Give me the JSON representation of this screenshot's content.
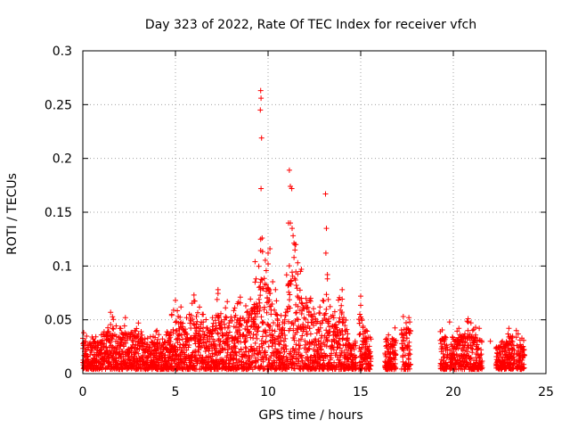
{
  "chart_data": {
    "type": "scatter",
    "title": "Day 323 of 2022, Rate Of TEC Index for receiver vfch",
    "xlabel": "GPS time / hours",
    "ylabel": "ROTI / TECUs",
    "xlim": [
      0,
      25
    ],
    "ylim": [
      0,
      0.3
    ],
    "x_ticks": [
      "0",
      "5",
      "10",
      "15",
      "20",
      "25"
    ],
    "y_ticks": [
      "0",
      "0.05",
      "0.1",
      "0.15",
      "0.2",
      "0.25",
      "0.3"
    ],
    "grid": true,
    "marker": "+",
    "series": [
      {
        "name": "ROTI",
        "color": "#ff0000",
        "envelope": [
          [
            0.05,
            0.038
          ],
          [
            0.5,
            0.034
          ],
          [
            1.0,
            0.036
          ],
          [
            1.5,
            0.057
          ],
          [
            2.0,
            0.042
          ],
          [
            2.3,
            0.052
          ],
          [
            2.8,
            0.04
          ],
          [
            3.0,
            0.047
          ],
          [
            3.5,
            0.033
          ],
          [
            4.0,
            0.04
          ],
          [
            4.5,
            0.036
          ],
          [
            4.8,
            0.055
          ],
          [
            5.0,
            0.068
          ],
          [
            5.3,
            0.062
          ],
          [
            5.6,
            0.052
          ],
          [
            6.0,
            0.073
          ],
          [
            6.5,
            0.055
          ],
          [
            7.0,
            0.052
          ],
          [
            7.3,
            0.078
          ],
          [
            7.8,
            0.067
          ],
          [
            8.2,
            0.061
          ],
          [
            8.5,
            0.071
          ],
          [
            8.8,
            0.063
          ],
          [
            9.3,
            0.085
          ],
          [
            9.6,
            0.125
          ],
          [
            10.0,
            0.112
          ],
          [
            10.4,
            0.078
          ],
          [
            10.8,
            0.048
          ],
          [
            11.2,
            0.14
          ],
          [
            11.5,
            0.12
          ],
          [
            11.8,
            0.097
          ],
          [
            12.3,
            0.07
          ],
          [
            12.8,
            0.062
          ],
          [
            13.2,
            0.088
          ],
          [
            13.5,
            0.054
          ],
          [
            14.0,
            0.078
          ],
          [
            14.3,
            0.037
          ],
          [
            14.7,
            0.03
          ],
          [
            15.0,
            0.072
          ],
          [
            15.3,
            0.04
          ],
          [
            16.5,
            0.036
          ],
          [
            17.3,
            0.053
          ],
          [
            17.6,
            0.052
          ],
          [
            19.3,
            0.039
          ],
          [
            19.8,
            0.048
          ],
          [
            20.3,
            0.042
          ],
          [
            20.8,
            0.051
          ],
          [
            21.2,
            0.043
          ],
          [
            21.4,
            0.042
          ],
          [
            22.0,
            0.03
          ],
          [
            22.6,
            0.029
          ],
          [
            23.0,
            0.042
          ],
          [
            23.4,
            0.04
          ],
          [
            23.7,
            0.033
          ]
        ],
        "peaks": [
          [
            9.6,
            0.263
          ],
          [
            9.62,
            0.256
          ],
          [
            9.58,
            0.245
          ],
          [
            9.65,
            0.219
          ],
          [
            9.62,
            0.172
          ],
          [
            9.68,
            0.126
          ],
          [
            10.1,
            0.116
          ],
          [
            9.3,
            0.104
          ],
          [
            11.15,
            0.189
          ],
          [
            11.2,
            0.174
          ],
          [
            11.28,
            0.172
          ],
          [
            11.1,
            0.14
          ],
          [
            11.3,
            0.135
          ],
          [
            11.45,
            0.12
          ],
          [
            13.1,
            0.167
          ],
          [
            13.15,
            0.135
          ],
          [
            13.12,
            0.112
          ],
          [
            13.2,
            0.092
          ],
          [
            11.6,
            0.103
          ],
          [
            11.4,
            0.108
          ]
        ],
        "ranges": [
          [
            0.0,
            14.75
          ],
          [
            14.9,
            15.55
          ],
          [
            16.3,
            16.9
          ],
          [
            17.2,
            17.7
          ],
          [
            19.3,
            19.7
          ],
          [
            19.8,
            21.55
          ],
          [
            22.3,
            23.3
          ],
          [
            23.4,
            23.85
          ]
        ]
      }
    ]
  }
}
